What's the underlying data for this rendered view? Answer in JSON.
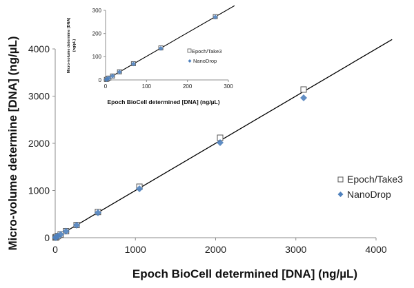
{
  "chart_data": [
    {
      "id": "main",
      "type": "scatter",
      "title": "",
      "xlabel": "Epoch BioCell determined [DNA] (ng/µL)",
      "ylabel": "Micro-volume determine [DNA] (ng/µL)",
      "xlim": [
        0,
        4000
      ],
      "ylim": [
        0,
        4000
      ],
      "xticks": [
        0,
        1000,
        2000,
        3000,
        4000
      ],
      "yticks": [
        0,
        1000,
        2000,
        3000,
        4000
      ],
      "grid": false,
      "legend_position": "right",
      "trendline": {
        "x": [
          0,
          4200
        ],
        "y": [
          0,
          4200
        ]
      },
      "series": [
        {
          "name": "Epoch/Take3",
          "marker": "open-square",
          "color": "#555555",
          "x": [
            4,
            8,
            17,
            34,
            68,
            135,
            267,
            533,
            1050,
            2056,
            3097
          ],
          "y": [
            4,
            8,
            17,
            35,
            70,
            138,
            270,
            545,
            1080,
            2117,
            3139
          ]
        },
        {
          "name": "NanoDrop",
          "marker": "diamond",
          "color": "#4f81bd",
          "x": [
            4,
            8,
            17,
            34,
            68,
            135,
            267,
            533,
            1050,
            2056,
            3097
          ],
          "y": [
            4,
            8,
            17,
            34,
            69,
            136,
            265,
            530,
            1036,
            2015,
            2964
          ]
        }
      ]
    },
    {
      "id": "inset",
      "type": "scatter",
      "title": "",
      "xlabel": "Epoch BioCell determined [DNA] (ng/µL)",
      "ylabel": "Micro-volume determine [DNA] (ng/µL)",
      "xlim": [
        0,
        300
      ],
      "ylim": [
        0,
        300
      ],
      "xticks": [
        0,
        100,
        200,
        300
      ],
      "yticks": [
        0,
        100,
        200,
        300
      ],
      "grid": false,
      "legend_position": "right",
      "trendline": {
        "x": [
          0,
          315
        ],
        "y": [
          0,
          320
        ]
      },
      "series": [
        {
          "name": "Epoch/Take3",
          "marker": "open-square",
          "color": "#555555",
          "x": [
            2,
            4,
            8,
            17,
            34,
            68,
            135,
            268
          ],
          "y": [
            2,
            4,
            8,
            17,
            35,
            70,
            138,
            273
          ]
        },
        {
          "name": "NanoDrop",
          "marker": "diamond",
          "color": "#4f81bd",
          "x": [
            2,
            4,
            8,
            17,
            34,
            68,
            135,
            268
          ],
          "y": [
            2,
            4,
            8,
            17,
            34,
            69,
            136,
            271
          ]
        }
      ]
    }
  ],
  "main": {
    "xlabel": "Epoch BioCell determined [DNA] (ng/µL)",
    "ylabel": "Micro-volume determine [DNA] (ng/µL)",
    "legend": [
      {
        "label": "Epoch/Take3",
        "marker": "open-square"
      },
      {
        "label": "NanoDrop",
        "marker": "diamond"
      }
    ]
  },
  "inset": {
    "xlabel": "Epoch BioCell determined [DNA] (ng/µL)",
    "ylabel_line1": "Micro-volume determine [DNA]",
    "ylabel_line2": "(ng/µL)",
    "legend": [
      {
        "label": "Epoch/Take3",
        "marker": "open-square"
      },
      {
        "label": "NanoDrop",
        "marker": "diamond"
      }
    ]
  },
  "colors": {
    "axis": "#8c8c8c",
    "trendline": "#000000",
    "square_stroke": "#555555",
    "square_fill": "#ffffff",
    "diamond": "#4f81bd"
  }
}
